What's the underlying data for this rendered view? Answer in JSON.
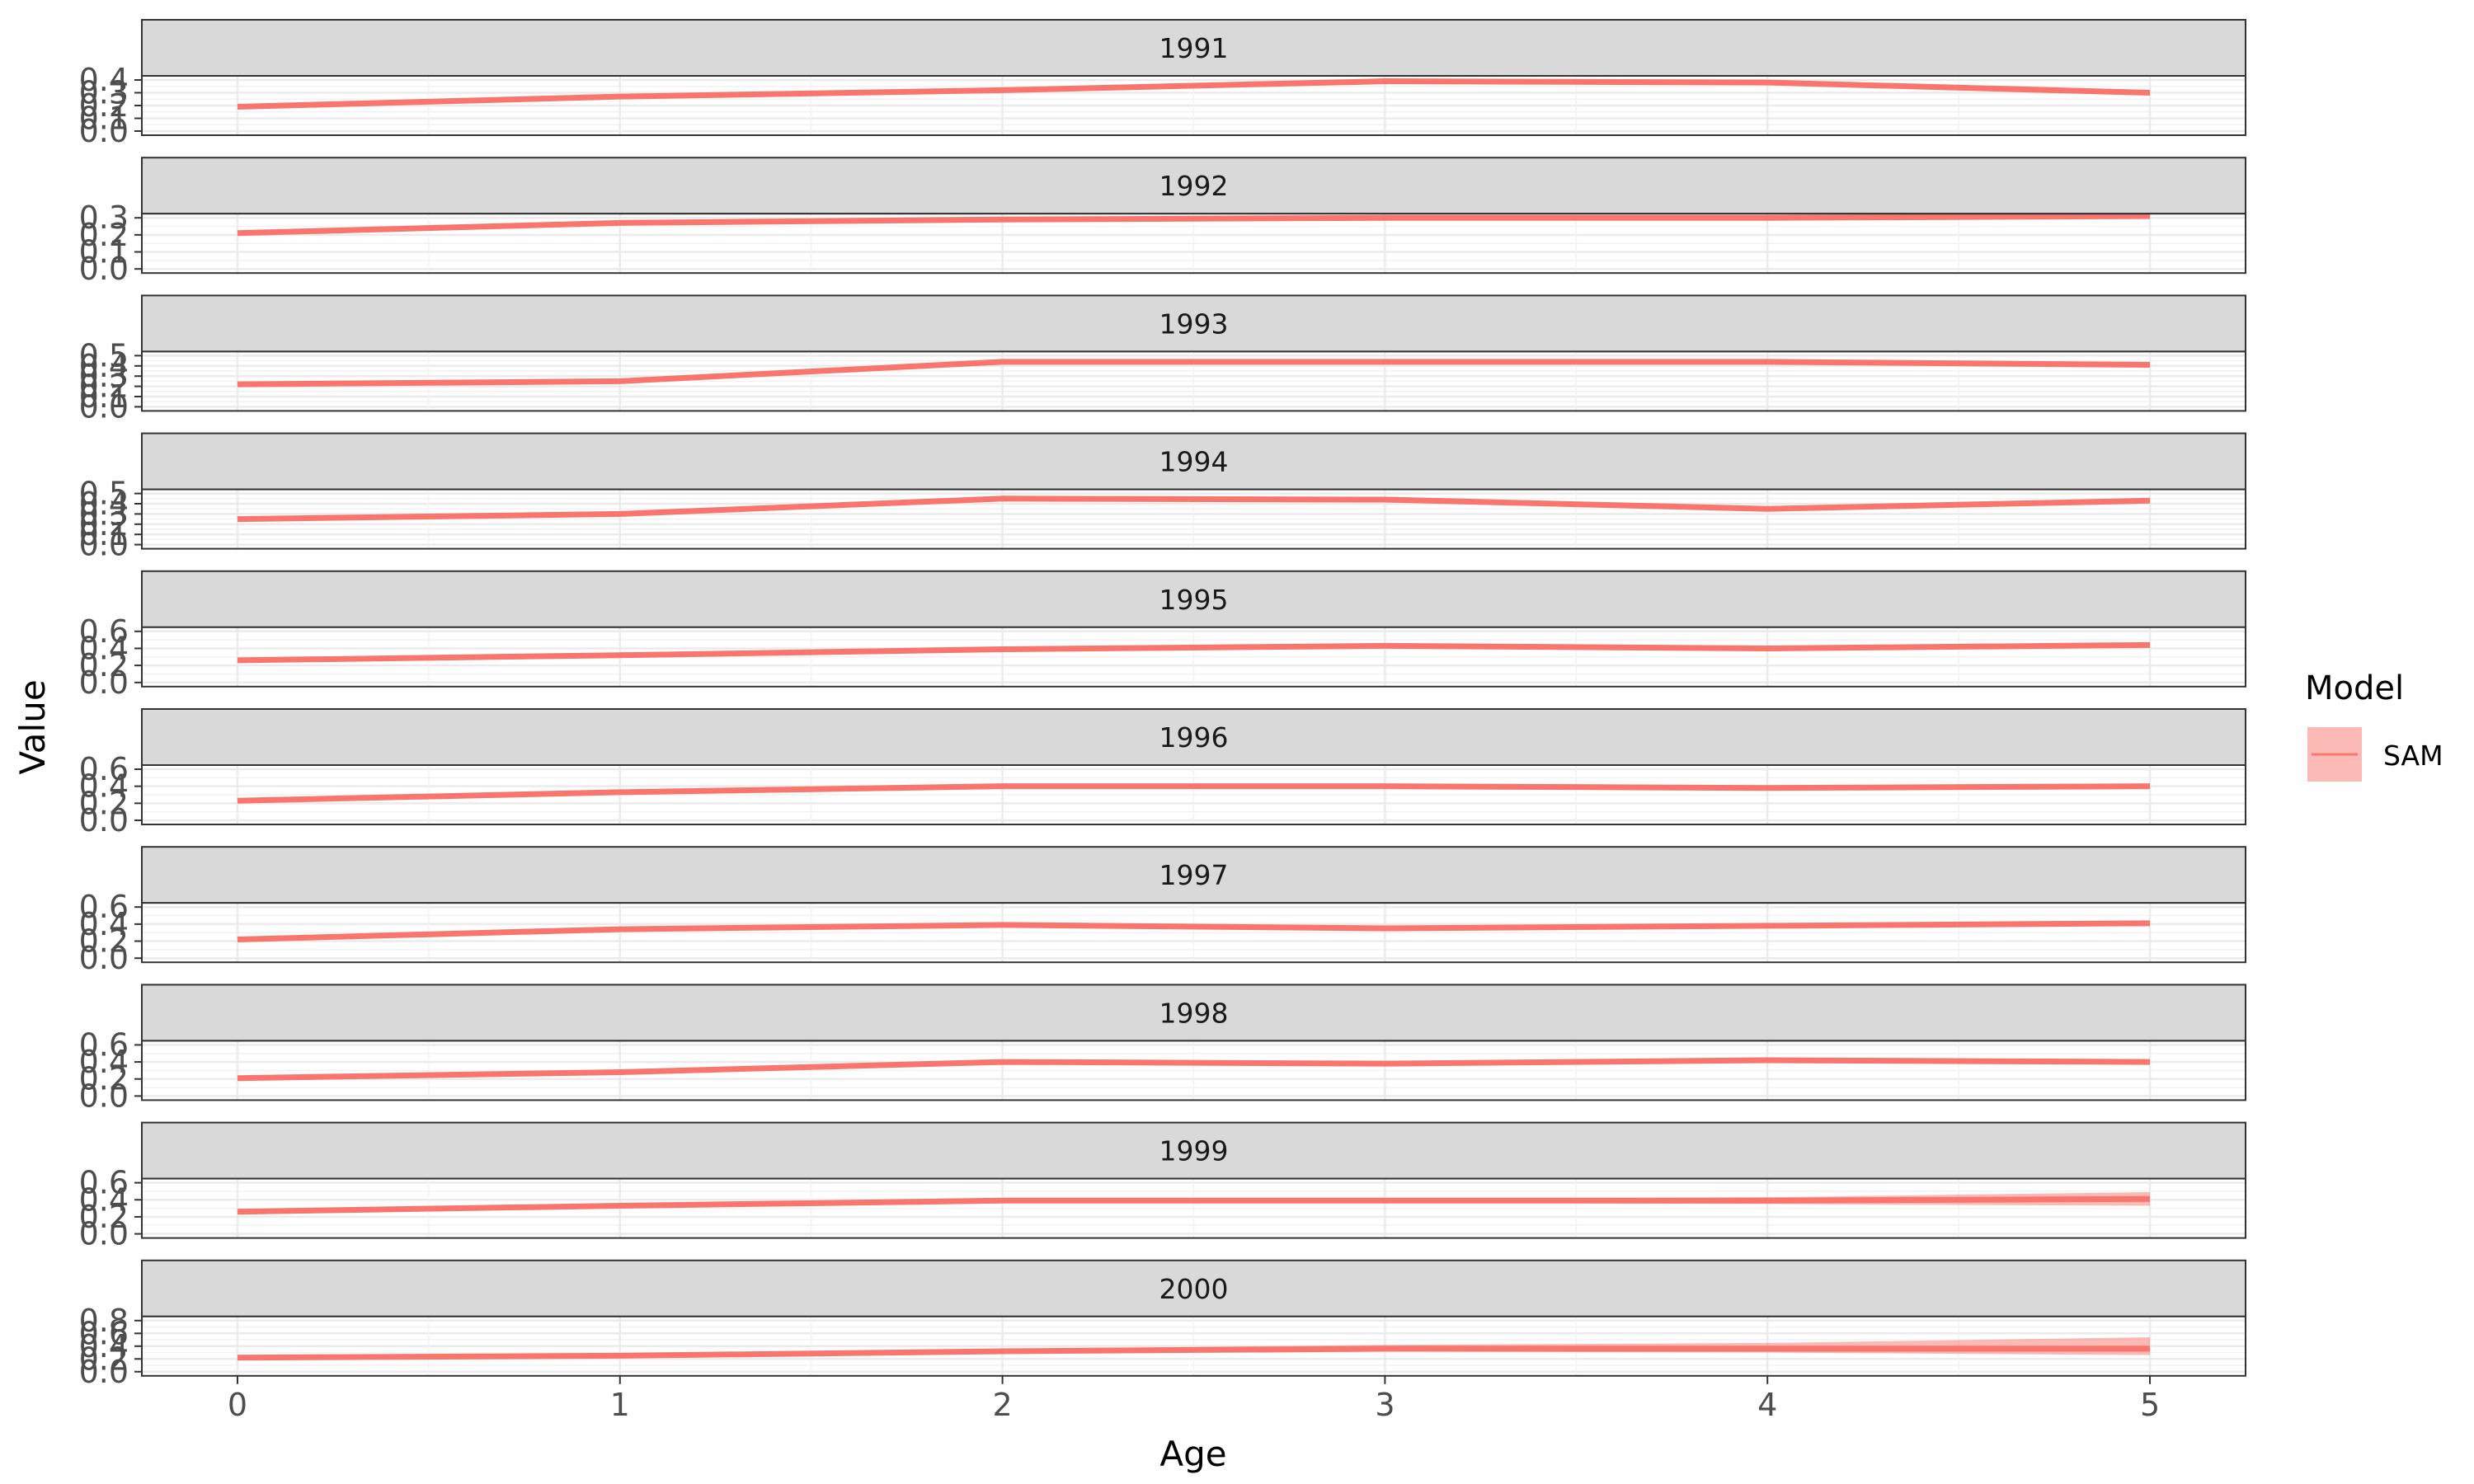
{
  "chart_data": {
    "type": "line",
    "xlabel": "Age",
    "ylabel": "Value",
    "x": [
      0,
      1,
      2,
      3,
      4,
      5
    ],
    "xlim": [
      -0.25,
      5.25
    ],
    "x_ticks": [
      "0",
      "1",
      "2",
      "3",
      "4",
      "5"
    ],
    "legend": {
      "title": "Model",
      "entries": [
        "SAM"
      ],
      "position": "right"
    },
    "series_color": "#f8766d",
    "band_color": "#f8766d",
    "strip_fill": "#d9d9d9",
    "grid": true,
    "facets": [
      {
        "label": "1991",
        "ylim": [
          0,
          0.4
        ],
        "y_ticks": [
          "0.0",
          "0.1",
          "0.2",
          "0.3",
          "0.4"
        ],
        "values": [
          0.19,
          0.27,
          0.32,
          0.39,
          0.38,
          0.3
        ],
        "lower": [
          0.185,
          0.265,
          0.315,
          0.385,
          0.375,
          0.295
        ],
        "upper": [
          0.195,
          0.275,
          0.325,
          0.395,
          0.385,
          0.305
        ]
      },
      {
        "label": "1992",
        "ylim": [
          0,
          0.3
        ],
        "y_ticks": [
          "0.0",
          "0.1",
          "0.2",
          "0.3"
        ],
        "values": [
          0.21,
          0.27,
          0.29,
          0.3,
          0.3,
          0.31
        ],
        "lower": [
          0.205,
          0.265,
          0.285,
          0.295,
          0.295,
          0.303
        ],
        "upper": [
          0.215,
          0.275,
          0.295,
          0.305,
          0.305,
          0.317
        ]
      },
      {
        "label": "1993",
        "ylim": [
          0,
          0.5
        ],
        "y_ticks": [
          "0.0",
          "0.1",
          "0.2",
          "0.3",
          "0.4",
          "0.5"
        ],
        "values": [
          0.22,
          0.25,
          0.44,
          0.44,
          0.44,
          0.41
        ],
        "lower": [
          0.214,
          0.244,
          0.434,
          0.434,
          0.432,
          0.402
        ],
        "upper": [
          0.226,
          0.256,
          0.446,
          0.446,
          0.448,
          0.418
        ]
      },
      {
        "label": "1994",
        "ylim": [
          0,
          0.5
        ],
        "y_ticks": [
          "0.0",
          "0.1",
          "0.2",
          "0.3",
          "0.4",
          "0.5"
        ],
        "values": [
          0.25,
          0.3,
          0.45,
          0.44,
          0.35,
          0.43
        ],
        "lower": [
          0.244,
          0.294,
          0.444,
          0.434,
          0.343,
          0.422
        ],
        "upper": [
          0.256,
          0.306,
          0.456,
          0.446,
          0.357,
          0.438
        ]
      },
      {
        "label": "1995",
        "ylim": [
          0,
          0.6
        ],
        "y_ticks": [
          "0.0",
          "0.2",
          "0.4",
          "0.6"
        ],
        "values": [
          0.26,
          0.32,
          0.39,
          0.43,
          0.4,
          0.44
        ],
        "lower": [
          0.254,
          0.314,
          0.383,
          0.422,
          0.392,
          0.43
        ],
        "upper": [
          0.266,
          0.326,
          0.397,
          0.438,
          0.408,
          0.45
        ]
      },
      {
        "label": "1996",
        "ylim": [
          0,
          0.6
        ],
        "y_ticks": [
          "0.0",
          "0.2",
          "0.4",
          "0.6"
        ],
        "values": [
          0.23,
          0.33,
          0.4,
          0.4,
          0.38,
          0.4
        ],
        "lower": [
          0.224,
          0.324,
          0.392,
          0.392,
          0.37,
          0.39
        ],
        "upper": [
          0.236,
          0.336,
          0.408,
          0.408,
          0.39,
          0.41
        ]
      },
      {
        "label": "1997",
        "ylim": [
          0,
          0.6
        ],
        "y_ticks": [
          "0.0",
          "0.2",
          "0.4",
          "0.6"
        ],
        "values": [
          0.22,
          0.34,
          0.39,
          0.35,
          0.38,
          0.41
        ],
        "lower": [
          0.214,
          0.333,
          0.382,
          0.342,
          0.37,
          0.398
        ],
        "upper": [
          0.226,
          0.347,
          0.398,
          0.358,
          0.39,
          0.422
        ]
      },
      {
        "label": "1998",
        "ylim": [
          0,
          0.6
        ],
        "y_ticks": [
          "0.0",
          "0.2",
          "0.4",
          "0.6"
        ],
        "values": [
          0.21,
          0.28,
          0.4,
          0.38,
          0.42,
          0.4
        ],
        "lower": [
          0.204,
          0.273,
          0.39,
          0.368,
          0.405,
          0.383
        ],
        "upper": [
          0.216,
          0.287,
          0.41,
          0.392,
          0.435,
          0.417
        ]
      },
      {
        "label": "1999",
        "ylim": [
          0,
          0.6
        ],
        "y_ticks": [
          "0.0",
          "0.2",
          "0.4",
          "0.6"
        ],
        "values": [
          0.26,
          0.33,
          0.39,
          0.39,
          0.39,
          0.41
        ],
        "lower": [
          0.245,
          0.318,
          0.37,
          0.368,
          0.35,
          0.33
        ],
        "upper": [
          0.275,
          0.342,
          0.41,
          0.412,
          0.43,
          0.49
        ]
      },
      {
        "label": "2000",
        "ylim": [
          0,
          0.8
        ],
        "y_ticks": [
          "0.0",
          "0.2",
          "0.4",
          "0.6",
          "0.8"
        ],
        "values": [
          0.22,
          0.25,
          0.32,
          0.36,
          0.36,
          0.36
        ],
        "lower": [
          0.195,
          0.225,
          0.285,
          0.315,
          0.3,
          0.26
        ],
        "upper": [
          0.245,
          0.275,
          0.355,
          0.42,
          0.45,
          0.54
        ]
      }
    ]
  }
}
